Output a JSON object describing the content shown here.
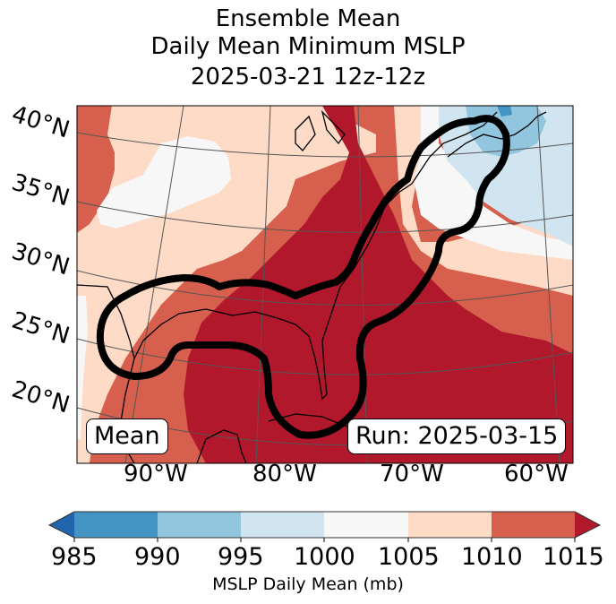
{
  "title": {
    "line1": "Ensemble Mean",
    "line2": "Daily Mean Minimum MSLP",
    "line3": "2025-03-21 12z-12z"
  },
  "map": {
    "lat_labels": [
      "40°N",
      "35°N",
      "30°N",
      "25°N",
      "20°N"
    ],
    "lon_labels": [
      "90°W",
      "80°W",
      "70°W",
      "60°W"
    ],
    "mean_label": "Mean",
    "run_label": "Run: 2025-03-15",
    "colors": {
      "lt985": "#2166ac",
      "c985_990": "#4393c3",
      "c990_995": "#92c5de",
      "c995_1000": "#d1e5f0",
      "c1000_1005": "#f7f7f7",
      "c1005_1010": "#fddbc7",
      "c1010_1015": "#d6604d",
      "gt1015": "#b2182b"
    }
  },
  "colorbar": {
    "ticks": [
      "985",
      "990",
      "995",
      "1000",
      "1005",
      "1010",
      "1015"
    ],
    "levels": [
      985,
      990,
      995,
      1000,
      1005,
      1010,
      1015
    ],
    "label": "MSLP Daily Mean (mb)"
  }
}
